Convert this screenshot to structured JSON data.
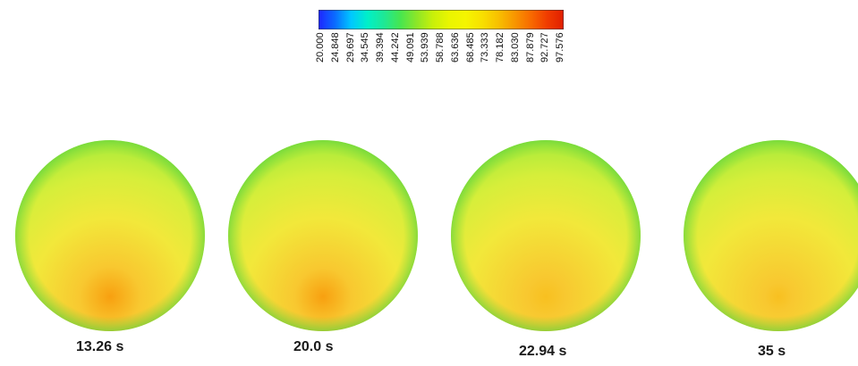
{
  "colorbar": {
    "tick_labels": [
      "20.000",
      "24.848",
      "29.697",
      "34.545",
      "39.394",
      "44.242",
      "49.091",
      "53.939",
      "58.788",
      "63.636",
      "68.485",
      "73.333",
      "78.182",
      "83.030",
      "87.879",
      "92.727",
      "97.576"
    ],
    "colors": [
      "#1e25ff",
      "#0a6bff",
      "#00c8ff",
      "#00f0c8",
      "#1ee896",
      "#46e650",
      "#8ce628",
      "#c8f00a",
      "#eaf500",
      "#f5f500",
      "#f8e000",
      "#f8c000",
      "#f89600",
      "#f86a00",
      "#f03c00",
      "#e01e00"
    ]
  },
  "snapshots": [
    {
      "label": "13.26 s",
      "hot": 0.85
    },
    {
      "label": "20.0 s",
      "hot": 0.8
    },
    {
      "label": "22.94 s",
      "hot": 0.55
    },
    {
      "label": "35 s",
      "hot": 0.4
    }
  ]
}
